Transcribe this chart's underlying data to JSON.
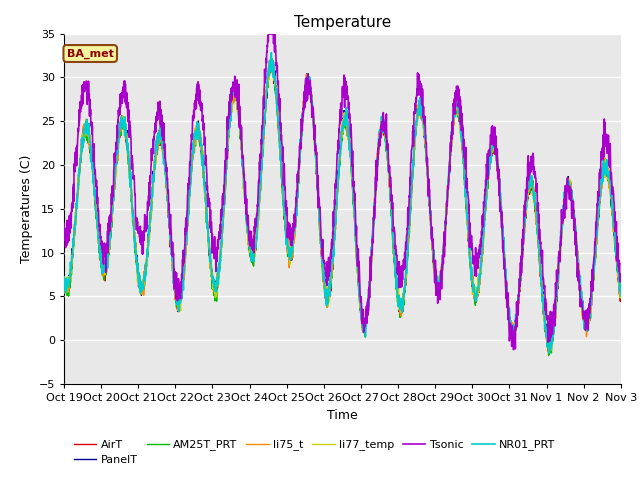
{
  "title": "Temperature",
  "xlabel": "Time",
  "ylabel": "Temperatures (C)",
  "ylim": [
    -5,
    35
  ],
  "xlim": [
    0,
    15
  ],
  "background_color": "#e8e8e8",
  "tick_labels": [
    "Oct 19",
    "Oct 20",
    "Oct 21",
    "Oct 22",
    "Oct 23",
    "Oct 24",
    "Oct 25",
    "Oct 26",
    "Oct 27",
    "Oct 28",
    "Oct 29",
    "Oct 30",
    "Oct 31",
    "Nov 1",
    "Nov 2",
    "Nov 3"
  ],
  "annotation_text": "BA_met",
  "annotation_bg": "#f5f5a0",
  "annotation_border": "#8b4513",
  "series": {
    "AirT": {
      "color": "#dd0000",
      "lw": 1.0,
      "zorder": 3
    },
    "PanelT": {
      "color": "#000099",
      "lw": 1.0,
      "zorder": 3
    },
    "AM25T_PRT": {
      "color": "#00bb00",
      "lw": 1.0,
      "zorder": 3
    },
    "li75_t": {
      "color": "#ff8800",
      "lw": 1.0,
      "zorder": 3
    },
    "li77_temp": {
      "color": "#cccc00",
      "lw": 1.0,
      "zorder": 3
    },
    "Tsonic": {
      "color": "#aa00cc",
      "lw": 1.2,
      "zorder": 4
    },
    "NR01_PRT": {
      "color": "#00cccc",
      "lw": 1.2,
      "zorder": 4
    }
  }
}
